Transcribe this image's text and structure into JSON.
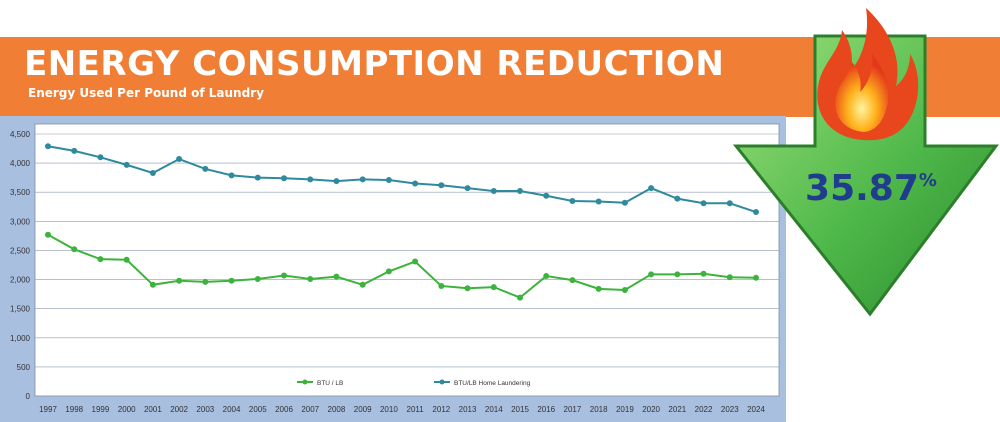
{
  "header": {
    "title": "ENERGY CONSUMPTION REDUCTION",
    "subtitle": "Energy Used Per Pound of Laundry"
  },
  "badge": {
    "value": "35.87",
    "unit": "%",
    "icons": [
      "down-arrow-icon",
      "flame-icon"
    ],
    "colors": {
      "arrow": "#6cc24a",
      "arrow_dark": "#2f8f2f",
      "flame": "#f05a1e",
      "text": "#1f3d8c"
    }
  },
  "colors": {
    "banner": "#f07f35",
    "panel": "#a9bfe0",
    "series_1": "#3cb33c",
    "series_2": "#2f8a9e"
  },
  "chart_data": {
    "type": "line",
    "title": "Energy Used Per Pound of Laundry",
    "xlabel": "",
    "ylabel": "",
    "ylim": [
      0,
      4500
    ],
    "yticks": [
      0,
      500,
      1000,
      1500,
      2000,
      2500,
      3000,
      3500,
      4000,
      4500
    ],
    "ytick_labels": [
      "0",
      "500",
      "1,000",
      "1,500",
      "2,000",
      "2,500",
      "3,000",
      "3,500",
      "4,000",
      "4,500"
    ],
    "grid": "horizontal",
    "legend_position": "bottom",
    "categories": [
      "1997",
      "1998",
      "1999",
      "2000",
      "2001",
      "2002",
      "2003",
      "2004",
      "2005",
      "2006",
      "2007",
      "2008",
      "2009",
      "2010",
      "2011",
      "2012",
      "2013",
      "2014",
      "2015",
      "2016",
      "2017",
      "2018",
      "2019",
      "2020",
      "2021",
      "2022",
      "2023",
      "2024"
    ],
    "series": [
      {
        "name": "BTU / LB",
        "color": "#3cb33c",
        "values": [
          2770,
          2520,
          2350,
          2340,
          1910,
          1980,
          1960,
          1980,
          2010,
          2070,
          2010,
          2050,
          1910,
          2140,
          2310,
          1890,
          1850,
          1870,
          1690,
          2060,
          1990,
          1840,
          1820,
          2090,
          2090,
          2100,
          2040,
          2030
        ]
      },
      {
        "name": "BTU/LB Home Laundering",
        "color": "#2f8a9e",
        "values": [
          4290,
          4210,
          4100,
          3970,
          3830,
          4070,
          3900,
          3790,
          3750,
          3740,
          3720,
          3690,
          3720,
          3710,
          3650,
          3620,
          3570,
          3520,
          3520,
          3440,
          3350,
          3340,
          3320,
          3570,
          3390,
          3310,
          3310,
          3160
        ]
      }
    ]
  }
}
